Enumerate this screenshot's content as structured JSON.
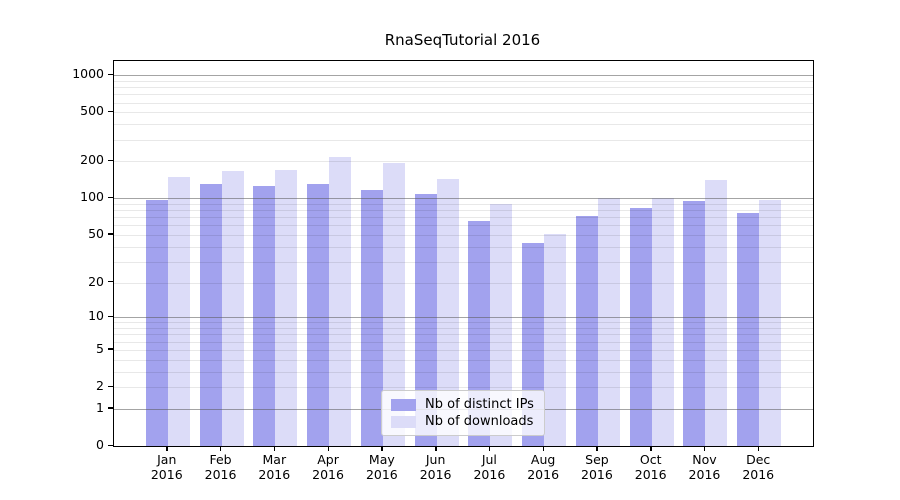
{
  "title": "RnaSeqTutorial 2016",
  "chart_data": {
    "type": "bar",
    "title": "RnaSeqTutorial 2016",
    "scale": "log1p",
    "grid": true,
    "ylim": [
      0,
      1000
    ],
    "y_ticks": [
      0,
      1,
      2,
      5,
      10,
      20,
      50,
      100,
      200,
      500,
      1000
    ],
    "x": [
      {
        "month": "Jan",
        "year": "2016"
      },
      {
        "month": "Feb",
        "year": "2016"
      },
      {
        "month": "Mar",
        "year": "2016"
      },
      {
        "month": "Apr",
        "year": "2016"
      },
      {
        "month": "May",
        "year": "2016"
      },
      {
        "month": "Jun",
        "year": "2016"
      },
      {
        "month": "Jul",
        "year": "2016"
      },
      {
        "month": "Aug",
        "year": "2016"
      },
      {
        "month": "Sep",
        "year": "2016"
      },
      {
        "month": "Oct",
        "year": "2016"
      },
      {
        "month": "Nov",
        "year": "2016"
      },
      {
        "month": "Dec",
        "year": "2016"
      }
    ],
    "series": [
      {
        "name": "Nb of distinct IPs",
        "color": "#a2a2ee",
        "values": [
          97,
          130,
          127,
          131,
          117,
          108,
          65,
          43,
          72,
          83,
          95,
          76
        ]
      },
      {
        "name": "Nb of downloads",
        "color": "#dcdcf8",
        "values": [
          150,
          167,
          170,
          216,
          194,
          144,
          89,
          51,
          100,
          100,
          141,
          97
        ]
      }
    ],
    "legend": {
      "position": "lower center"
    }
  }
}
